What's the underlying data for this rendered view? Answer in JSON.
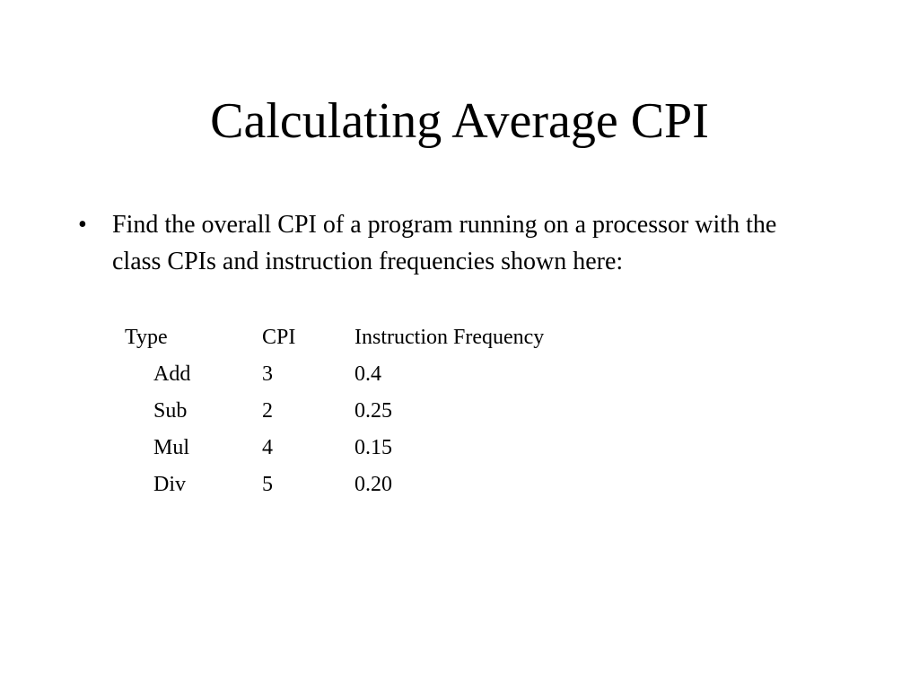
{
  "slide": {
    "title": "Calculating Average CPI",
    "bullet": {
      "marker": "•",
      "text": "Find the overall CPI of a program running on a processor with the class CPIs and instruction frequencies shown here:"
    },
    "table": {
      "headers": {
        "type": "Type",
        "cpi": "CPI",
        "frequency": "Instruction Frequency"
      },
      "rows": [
        {
          "type": "Add",
          "cpi": "3",
          "frequency": "0.4"
        },
        {
          "type": "Sub",
          "cpi": "2",
          "frequency": "0.25"
        },
        {
          "type": "Mul",
          "cpi": "4",
          "frequency": "0.15"
        },
        {
          "type": "Div",
          "cpi": "5",
          "frequency": "0.20"
        }
      ]
    }
  }
}
